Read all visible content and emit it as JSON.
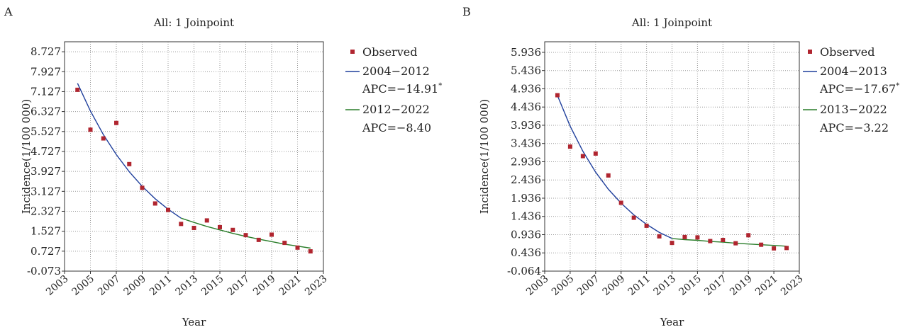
{
  "chart_data": [
    {
      "panel_label": "A",
      "type": "line",
      "title": "All: 1 Joinpoint",
      "xlabel": "Year",
      "ylabel": "Incidence(1/100 000)",
      "xlim": [
        2003,
        2023
      ],
      "ylim": [
        -0.073,
        9.127
      ],
      "x_ticks": [
        "2003",
        "2005",
        "2007",
        "2009",
        "2011",
        "2013",
        "2015",
        "2017",
        "2019",
        "2021",
        "2023"
      ],
      "y_ticks": [
        "-0.073",
        "0.727",
        "1.527",
        "2.327",
        "3.127",
        "3.927",
        "4.727",
        "5.527",
        "6.327",
        "7.127",
        "7.927",
        "8.727"
      ],
      "grid": true,
      "legend_position": "right",
      "legend": {
        "observed": "Observed",
        "seg1": "2004−2012",
        "seg1_apc_text": "APC=−14.91",
        "seg1_apc_mark": "*",
        "seg2": "2012−2022",
        "seg2_apc_text": "APC=−8.40"
      },
      "observed": {
        "x": [
          2004,
          2005,
          2006,
          2007,
          2008,
          2009,
          2010,
          2011,
          2012,
          2013,
          2014,
          2015,
          2016,
          2017,
          2018,
          2019,
          2020,
          2021,
          2022
        ],
        "y": [
          7.2,
          5.6,
          5.25,
          5.87,
          4.22,
          3.27,
          2.64,
          2.38,
          1.82,
          1.66,
          1.96,
          1.69,
          1.58,
          1.37,
          1.18,
          1.39,
          1.06,
          0.87,
          0.72
        ]
      },
      "series": [
        {
          "name": "2004−2012",
          "color": "#1f3f9c",
          "x": [
            2004,
            2005,
            2006,
            2007,
            2008,
            2009,
            2010,
            2011,
            2012
          ],
          "y": [
            7.46,
            6.35,
            5.4,
            4.6,
            3.91,
            3.33,
            2.83,
            2.41,
            2.05
          ]
        },
        {
          "name": "2012−2022",
          "color": "#2a7d2a",
          "x": [
            2012,
            2013,
            2014,
            2015,
            2016,
            2017,
            2018,
            2019,
            2020,
            2021,
            2022
          ],
          "y": [
            2.05,
            1.88,
            1.72,
            1.58,
            1.44,
            1.32,
            1.21,
            1.11,
            1.01,
            0.93,
            0.85
          ]
        }
      ],
      "observed_color": "#b0252f"
    },
    {
      "panel_label": "B",
      "type": "line",
      "title": "All: 1 Joinpoint",
      "xlabel": "Year",
      "ylabel": "Incidence(1/100 000)",
      "xlim": [
        2003,
        2023
      ],
      "ylim": [
        -0.064,
        6.226
      ],
      "x_ticks": [
        "2003",
        "2005",
        "2007",
        "2009",
        "2011",
        "2013",
        "2015",
        "2017",
        "2019",
        "2021",
        "2023"
      ],
      "y_ticks": [
        "-0.064",
        "0.436",
        "0.936",
        "1.436",
        "1.936",
        "2.436",
        "2.936",
        "3.436",
        "3.936",
        "4.436",
        "4.936",
        "5.436",
        "5.936"
      ],
      "grid": true,
      "legend_position": "right",
      "legend": {
        "observed": "Observed",
        "seg1": "2004−2013",
        "seg1_apc_text": "APC=−17.67",
        "seg1_apc_mark": "*",
        "seg2": "2013−2022",
        "seg2_apc_text": "APC=−3.22"
      },
      "observed": {
        "x": [
          2004,
          2005,
          2006,
          2007,
          2008,
          2009,
          2010,
          2011,
          2012,
          2013,
          2014,
          2015,
          2016,
          2017,
          2018,
          2019,
          2020,
          2021,
          2022
        ],
        "y": [
          4.76,
          3.35,
          3.09,
          3.16,
          2.56,
          1.81,
          1.4,
          1.18,
          0.89,
          0.71,
          0.87,
          0.86,
          0.76,
          0.79,
          0.7,
          0.92,
          0.66,
          0.56,
          0.57
        ]
      },
      "series": [
        {
          "name": "2004−2013",
          "color": "#1f3f9c",
          "x": [
            2004,
            2005,
            2006,
            2007,
            2008,
            2009,
            2010,
            2011,
            2012,
            2013
          ],
          "y": [
            4.75,
            3.91,
            3.22,
            2.65,
            2.18,
            1.8,
            1.48,
            1.22,
            1.0,
            0.83
          ]
        },
        {
          "name": "2013−2022",
          "color": "#2a7d2a",
          "x": [
            2013,
            2014,
            2015,
            2016,
            2017,
            2018,
            2019,
            2020,
            2021,
            2022
          ],
          "y": [
            0.83,
            0.8,
            0.78,
            0.75,
            0.73,
            0.7,
            0.68,
            0.66,
            0.64,
            0.62
          ]
        }
      ],
      "observed_color": "#b0252f"
    }
  ]
}
